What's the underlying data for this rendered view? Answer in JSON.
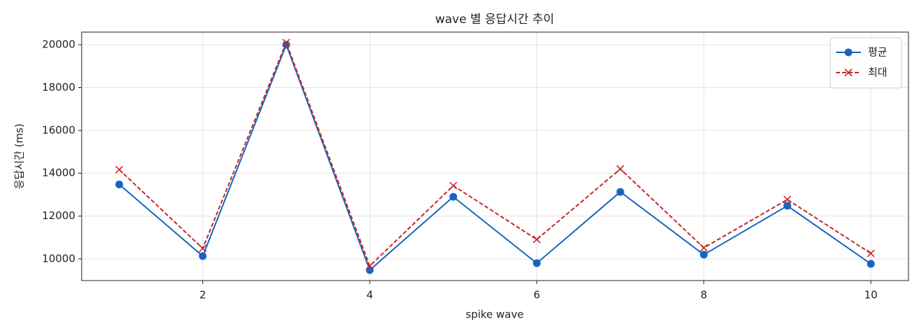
{
  "chart_data": {
    "type": "line",
    "title": "wave 별 응답시간 추이",
    "x_label": "spike wave",
    "y_label": "응답시간 (ms)",
    "x": [
      1,
      2,
      3,
      4,
      5,
      6,
      7,
      8,
      9,
      10
    ],
    "series": [
      {
        "name": "평균",
        "color": "#1565c0",
        "marker": "o",
        "linestyle": "solid",
        "values": [
          13480,
          10130,
          20000,
          9480,
          12900,
          9800,
          13130,
          10200,
          12480,
          9770
        ]
      },
      {
        "name": "최대",
        "color": "#c62828",
        "marker": "x",
        "linestyle": "dashed",
        "values": [
          14170,
          10490,
          20100,
          9670,
          13420,
          10910,
          14200,
          10520,
          12770,
          10260
        ]
      }
    ],
    "xlim": [
      0.55,
      10.45
    ],
    "xticks": [
      2,
      4,
      6,
      8,
      10
    ],
    "ylim": [
      8990,
      20590
    ],
    "yticks": [
      10000,
      12000,
      14000,
      16000,
      18000,
      20000
    ],
    "grid": true,
    "legend": "upper right"
  }
}
